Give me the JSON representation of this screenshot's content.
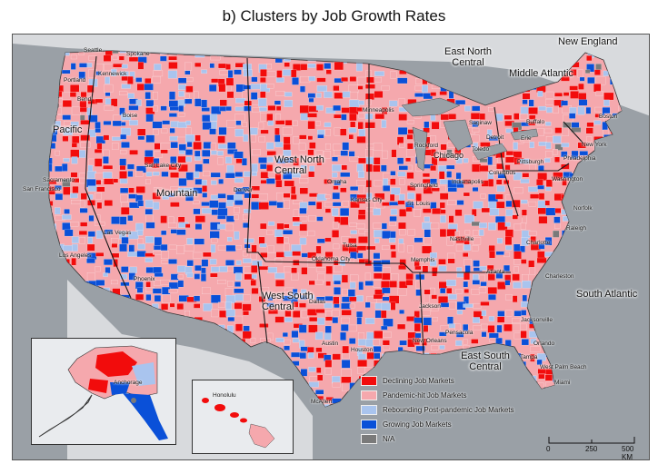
{
  "title": "b) Clusters by Job Growth Rates",
  "colors": {
    "declining": "#f20c0c",
    "pandemic": "#f5a8ad",
    "rebounding": "#a9c4ee",
    "growing": "#0a50d8",
    "na": "#7a7a7a",
    "ocean": "#9aa0a6",
    "land": "#e2e4e7"
  },
  "legend": [
    {
      "label": "Declining Job Markets",
      "color": "#f20c0c"
    },
    {
      "label": "Pandemic-hit Job Markets",
      "color": "#f5a8ad"
    },
    {
      "label": "Rebounding Post-pandemic Job Markets",
      "color": "#a9c4ee"
    },
    {
      "label": "Growing Job Markets",
      "color": "#0a50d8"
    },
    {
      "label": "N/A",
      "color": "#7a7a7a"
    }
  ],
  "regions": {
    "pacific": "Pacific",
    "mountain": "Mountain",
    "west_north_central": "West North Central",
    "east_north_central": "East North Central",
    "middle_atlantic": "Middle Atlantic",
    "new_england": "New England",
    "south_atlantic": "South Atlantic",
    "east_south_central": "East South Central",
    "west_south_central": "West South Central"
  },
  "cities": {
    "seattle": "Seattle",
    "spokane": "Spokane",
    "kennewick": "Kennewick",
    "portland": "Portland",
    "bend": "Bend",
    "boise": "Boise",
    "sacramento": "Sacramento",
    "san_francisco": "San Francisco",
    "salt_lake_city": "Salt Lake City",
    "denver": "Denver",
    "las_vegas": "Las Vegas",
    "los_angeles": "Los Angeles",
    "phoenix": "Phoenix",
    "minneapolis": "Minneapolis",
    "omaha": "Omaha",
    "kansas_city": "Kansas City",
    "tulsa": "Tulsa",
    "oklahoma_city": "Oklahoma City",
    "dallas": "Dallas",
    "austin": "Austin",
    "houston": "Houston",
    "mcallen": "McAllen",
    "rockford": "Rockford",
    "chicago": "Chicago",
    "springfield": "Springfield",
    "indianapolis": "Indianapolis",
    "st_louis": "St. Louis",
    "saginaw": "Saginaw",
    "detroit": "Detroit",
    "toledo": "Toledo",
    "columbus": "Columbus",
    "buffalo": "Buffalo",
    "erie": "Erie",
    "pittsburgh": "Pittsburgh",
    "boston": "Boston",
    "new_york": "New York",
    "philadelphia": "Philadelphia",
    "washington": "Washington",
    "norfolk": "Norfolk",
    "raleigh": "Raleigh",
    "charlotte": "Charlotte",
    "nashville": "Nashville",
    "memphis": "Memphis",
    "atlanta": "Atlanta",
    "charleston": "Charleston",
    "jackson": "Jackson",
    "pensacola": "Pensacola",
    "new_orleans": "New Orleans",
    "jacksonville": "Jacksonville",
    "orlando": "Orlando",
    "tampa": "Tampa",
    "west_palm_beach": "West Palm Beach",
    "miami": "Miami",
    "anchorage": "Anchorage",
    "honolulu": "Honolulu"
  },
  "scale": {
    "ticks": [
      "0",
      "250",
      "500 KM"
    ]
  }
}
